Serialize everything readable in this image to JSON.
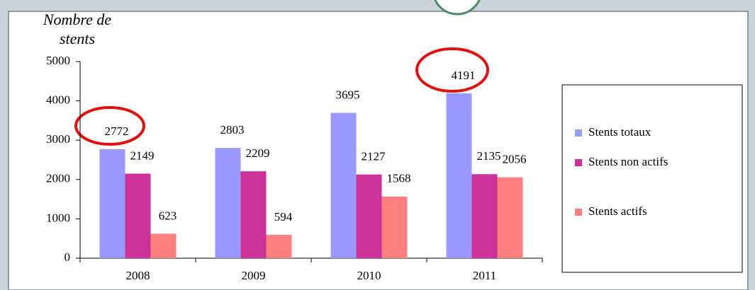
{
  "chart_data": {
    "type": "bar",
    "y_label": "Nombre de stents",
    "categories": [
      "2008",
      "2009",
      "2010",
      "2011"
    ],
    "series": [
      {
        "name": "Stents totaux",
        "color": "#9999ff",
        "values": [
          2772,
          2803,
          3695,
          4191
        ]
      },
      {
        "name": "Stents non actifs",
        "color": "#cc3399",
        "values": [
          2149,
          2209,
          2127,
          2135
        ]
      },
      {
        "name": "Stents actifs",
        "color": "#ff8080",
        "values": [
          623,
          594,
          1568,
          2056
        ]
      }
    ],
    "ylim": [
      0,
      5000
    ],
    "yticks": [
      0,
      1000,
      2000,
      3000,
      4000,
      5000
    ],
    "grid": false,
    "legend": "right"
  }
}
